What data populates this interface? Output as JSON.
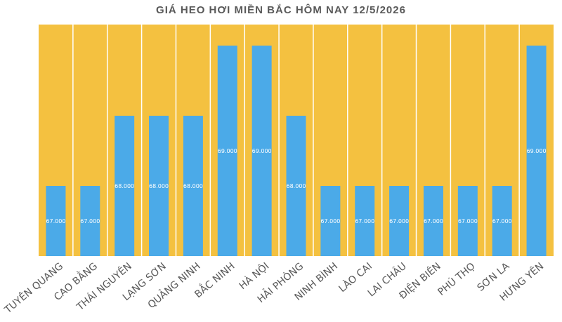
{
  "chart_data": {
    "type": "bar",
    "title": "GIÁ HEO HƠI MIỀN BẮC HÔM NAY 12/5/2026",
    "xlabel": "",
    "ylabel": "",
    "categories": [
      "TUYÊN QUANG",
      "CAO BẰNG",
      "THÁI NGUYÊN",
      "LẠNG SƠN",
      "QUẢNG NINH",
      "BẮC NINH",
      "HÀ NỘI",
      "HẢI PHÒNG",
      "NINH BÌNH",
      "LÀO CAI",
      "LAI CHÂU",
      "ĐIỆN BIÊN",
      "PHÚ THỌ",
      "SƠN LA",
      "HƯNG YÊN"
    ],
    "values": [
      67000,
      67000,
      68000,
      68000,
      68000,
      69000,
      69000,
      68000,
      67000,
      67000,
      67000,
      67000,
      67000,
      67000,
      69000
    ],
    "value_labels": [
      "67.000",
      "67.000",
      "68.000",
      "68.000",
      "68.000",
      "69.000",
      "69.000",
      "68.000",
      "67.000",
      "67.000",
      "67.000",
      "67.000",
      "67.000",
      "67.000",
      "69.000"
    ],
    "ylim": [
      66000,
      69300
    ],
    "grid": false,
    "legend": "none",
    "colors": {
      "plot_bg": "#F4C140",
      "bar": "#4BAAE8",
      "separator": "#FFFFFF",
      "text": "#595959"
    }
  }
}
